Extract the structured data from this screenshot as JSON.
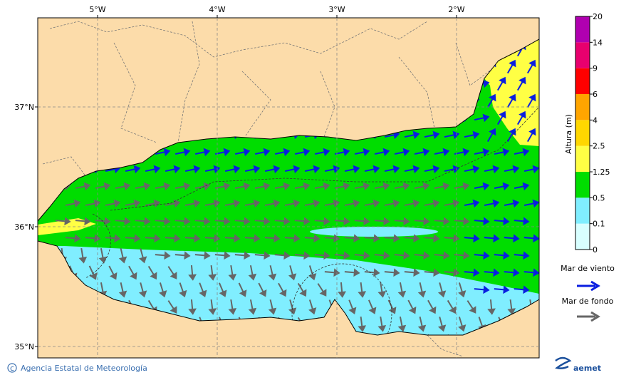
{
  "map": {
    "lon_ticks": [
      {
        "value": -5,
        "label": "5°W"
      },
      {
        "value": -4,
        "label": "4°W"
      },
      {
        "value": -3,
        "label": "3°W"
      },
      {
        "value": -2,
        "label": "2°W"
      }
    ],
    "lat_ticks": [
      {
        "value": 37,
        "label": "37°N"
      },
      {
        "value": 36,
        "label": "36°N"
      },
      {
        "value": 35,
        "label": "35°N"
      }
    ],
    "colorbar": {
      "title": "Altura (m)",
      "levels": [
        0,
        0.1,
        0.5,
        1.25,
        2.5,
        4,
        6,
        9,
        14,
        20
      ],
      "colors": [
        "#d8ffff",
        "#80eeff",
        "#00dd00",
        "#ffff44",
        "#ffd700",
        "#ffa500",
        "#ff0000",
        "#e8006e",
        "#b000b0"
      ]
    },
    "legend": [
      {
        "label": "Mar de viento",
        "color": "#0a1ee0"
      },
      {
        "label": "Mar de fondo",
        "color": "#666666"
      }
    ],
    "footer": {
      "credit": "Agencia Estatal de Meteorología",
      "logo": "aemet"
    }
  }
}
